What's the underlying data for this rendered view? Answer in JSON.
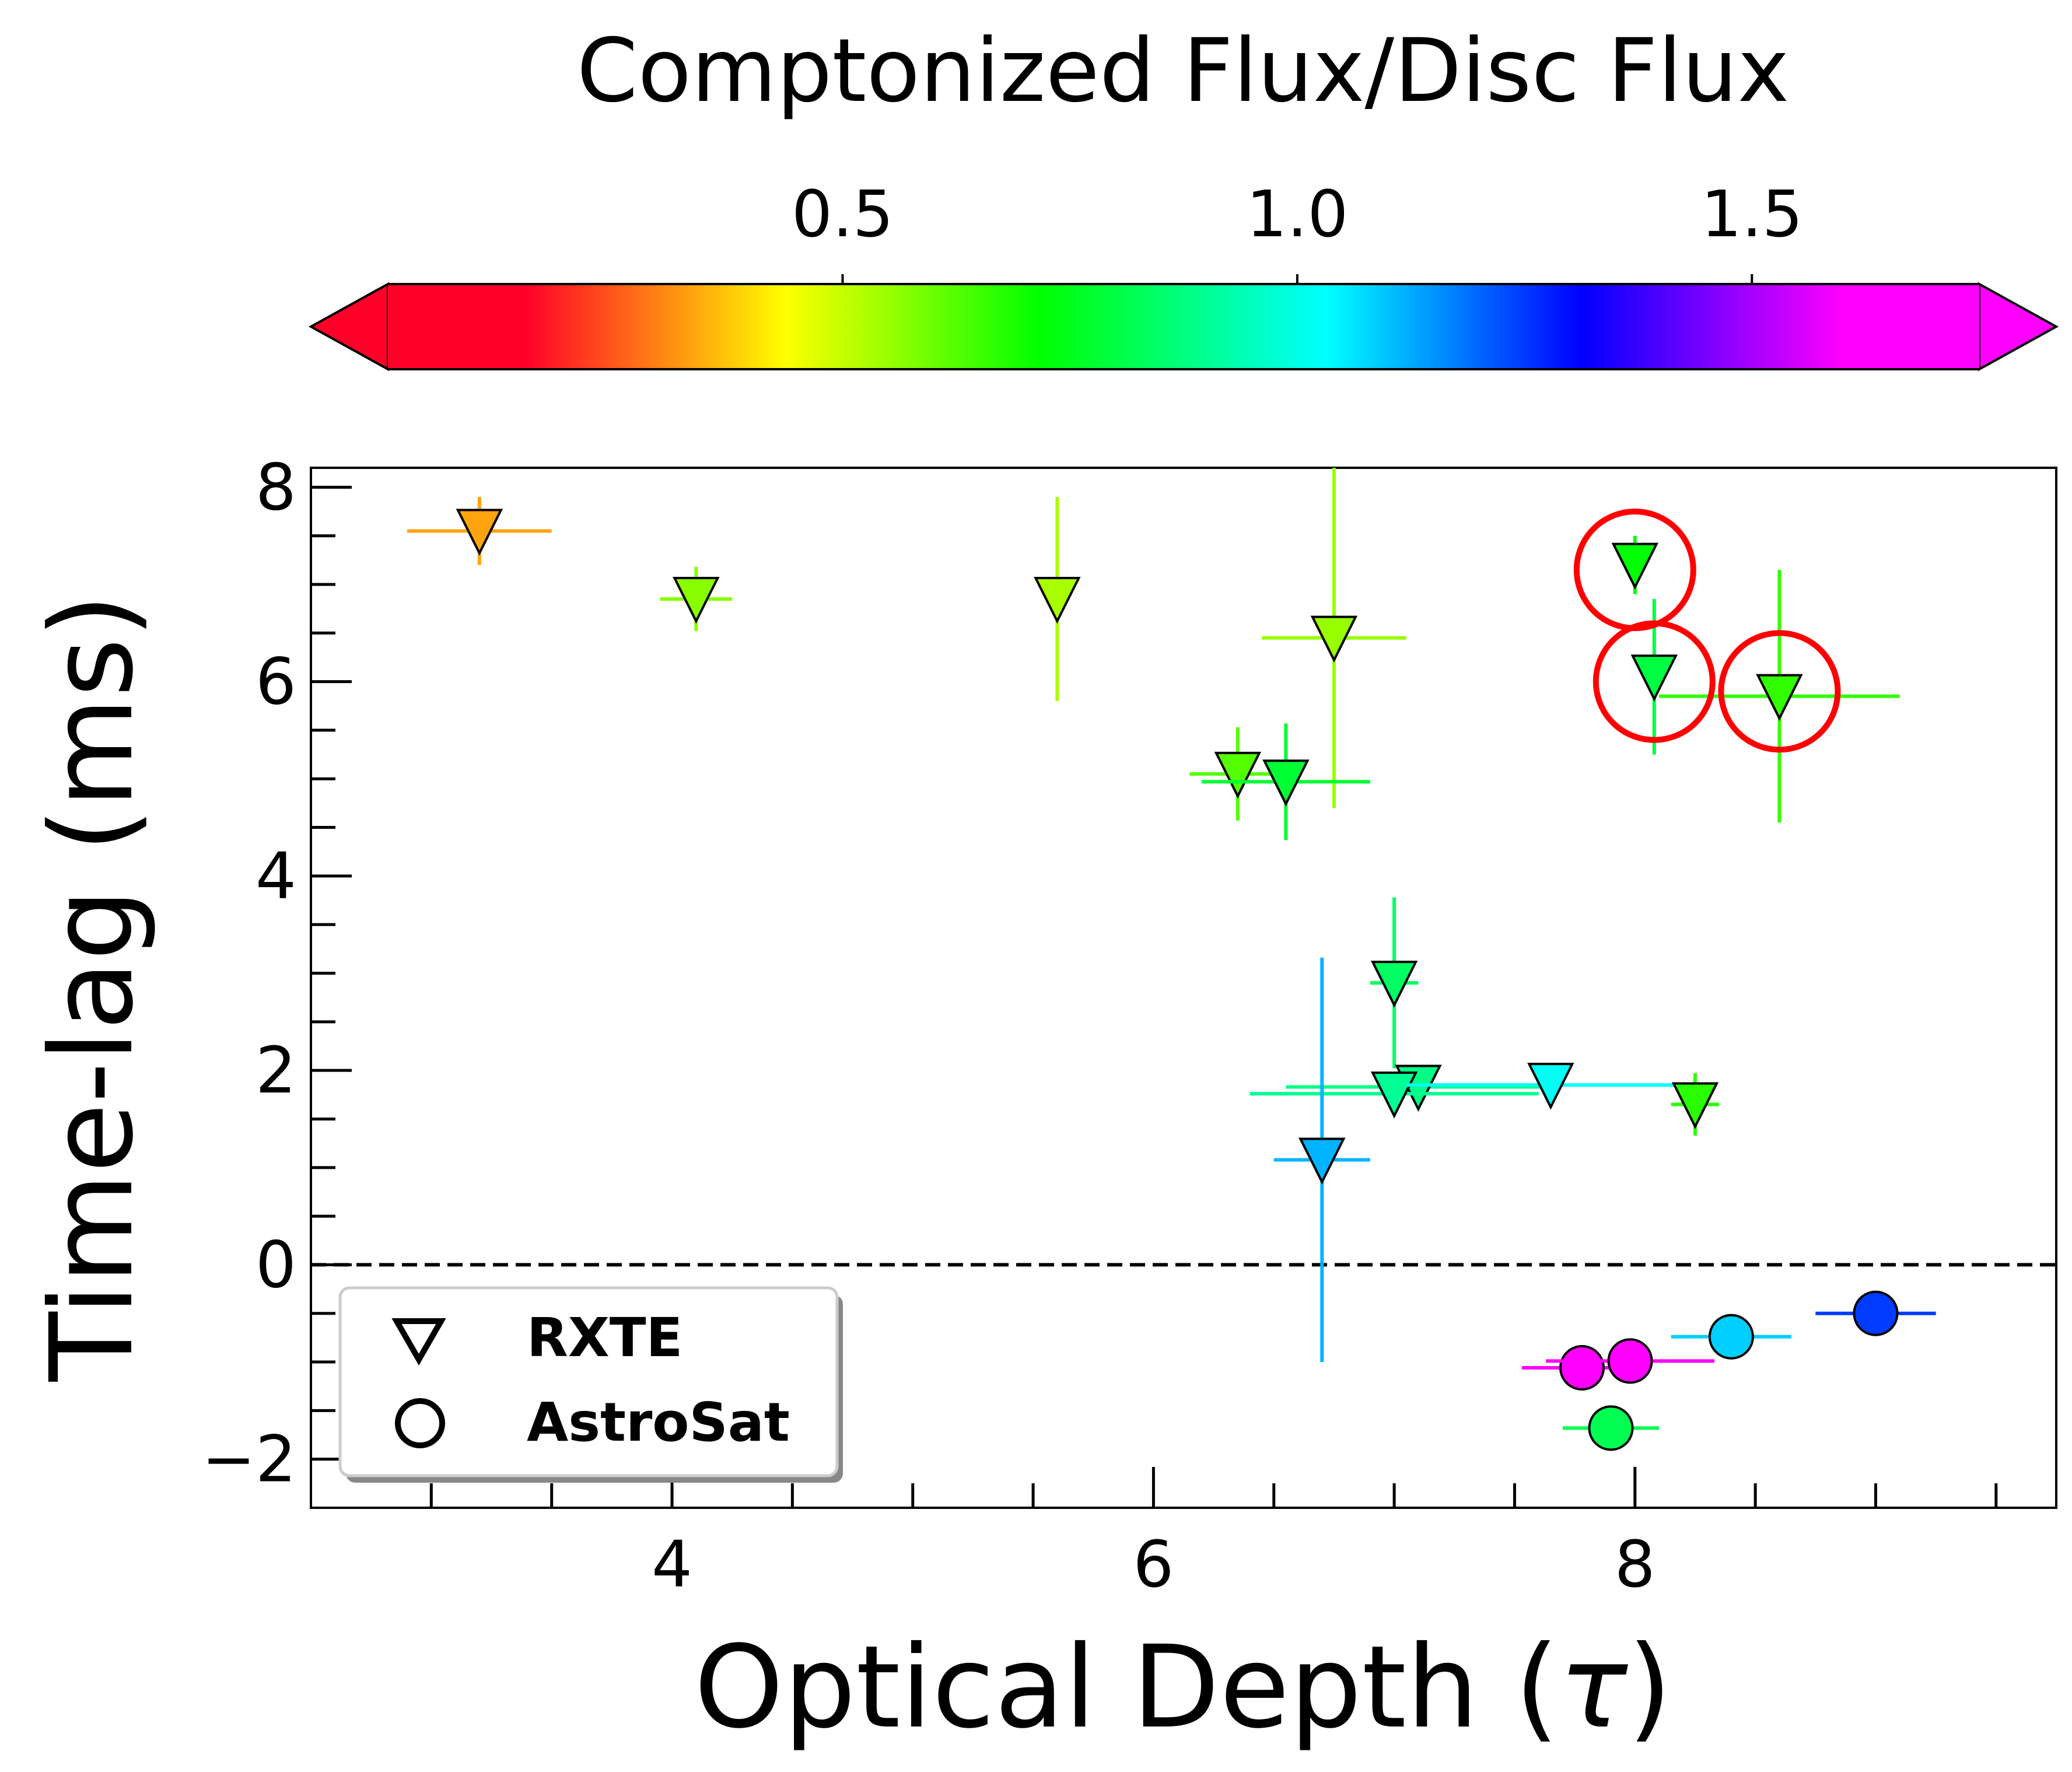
{
  "chart_data": {
    "type": "scatter",
    "xlabel": "Optical Depth (τ)",
    "ylabel": "Time-lag (ms)",
    "xlim": [
      2.5,
      9.75
    ],
    "ylim": [
      -2.5,
      8.2
    ],
    "xticks": [
      4,
      6,
      8
    ],
    "xtick_labels": [
      "4",
      "6",
      "8"
    ],
    "yticks": [
      -2,
      0,
      2,
      4,
      6,
      8
    ],
    "ytick_labels": [
      "−2",
      "0",
      "2",
      "4",
      "6",
      "8"
    ],
    "reference_line": {
      "y": 0,
      "style": "dashed"
    },
    "colorbar": {
      "title": "Comptonized Flux/Disc Flux",
      "range": [
        0.0,
        1.75
      ],
      "ticks": [
        0.5,
        1.0,
        1.5
      ],
      "tick_labels": [
        "0.5",
        "1.0",
        "1.5"
      ],
      "colormap": "gist_rainbow_r",
      "extend": "both"
    },
    "legend": {
      "position": "lower-left",
      "entries": [
        {
          "label": "RXTE",
          "marker": "triangle-down"
        },
        {
          "label": "AstroSat",
          "marker": "circle"
        }
      ]
    },
    "series": [
      {
        "name": "RXTE",
        "marker": "triangle-down",
        "points": [
          {
            "x": 3.2,
            "y": 7.55,
            "xerr": 0.3,
            "yerr": 0.35,
            "ratio": 0.18
          },
          {
            "x": 4.1,
            "y": 6.85,
            "xerr": 0.15,
            "yerr": 0.33,
            "ratio": 0.42
          },
          {
            "x": 5.6,
            "y": 6.85,
            "xerr": 0.0,
            "yerr": 1.05,
            "ratio": 0.38
          },
          {
            "x": 6.75,
            "y": 6.45,
            "xerr": 0.3,
            "yerr": 1.75,
            "ratio": 0.4
          },
          {
            "x": 6.35,
            "y": 5.05,
            "xerr": 0.2,
            "yerr": 0.48,
            "ratio": 0.48
          },
          {
            "x": 6.55,
            "y": 4.97,
            "xerr": 0.35,
            "yerr": 0.6,
            "ratio": 0.64
          },
          {
            "x": 7.0,
            "y": 2.9,
            "xerr": 0.1,
            "yerr": 0.88,
            "ratio": 0.7
          },
          {
            "x": 7.1,
            "y": 1.83,
            "xerr": 0.55,
            "yerr": 0.0,
            "ratio": 0.74
          },
          {
            "x": 7.0,
            "y": 1.76,
            "xerr": 0.6,
            "yerr": 0.0,
            "ratio": 0.76
          },
          {
            "x": 7.65,
            "y": 1.85,
            "xerr": 0.6,
            "yerr": 0.0,
            "ratio": 0.88
          },
          {
            "x": 8.25,
            "y": 1.65,
            "xerr": 0.1,
            "yerr": 0.32,
            "ratio": 0.53
          },
          {
            "x": 6.7,
            "y": 1.08,
            "xerr": 0.2,
            "yerr": 2.08,
            "ratio": 0.98
          },
          {
            "x": 8.0,
            "y": 7.2,
            "xerr": 0.0,
            "yerr": 0.3,
            "ratio": 0.58,
            "highlight": true
          },
          {
            "x": 8.08,
            "y": 6.05,
            "xerr": 0.0,
            "yerr": 0.8,
            "ratio": 0.66,
            "highlight": true
          },
          {
            "x": 8.6,
            "y": 5.85,
            "xerr": 0.5,
            "yerr": 1.3,
            "ratio": 0.52,
            "highlight": true
          }
        ]
      },
      {
        "name": "AstroSat",
        "marker": "circle",
        "points": [
          {
            "x": 7.9,
            "y": -1.68,
            "xerr": 0.2,
            "yerr": 0.0,
            "ratio": 0.68
          },
          {
            "x": 7.78,
            "y": -1.06,
            "xerr": 0.25,
            "yerr": 0.0,
            "ratio": 1.65
          },
          {
            "x": 7.98,
            "y": -0.99,
            "xerr": 0.35,
            "yerr": 0.0,
            "ratio": 1.48
          },
          {
            "x": 8.4,
            "y": -0.74,
            "xerr": 0.25,
            "yerr": 0.0,
            "ratio": 0.95
          },
          {
            "x": 9.0,
            "y": -0.5,
            "xerr": 0.25,
            "yerr": 0.0,
            "ratio": 1.12
          }
        ]
      }
    ],
    "annotations": [
      {
        "type": "circle",
        "x": 8.0,
        "y": 7.15,
        "color": "#ff0000"
      },
      {
        "type": "circle",
        "x": 8.08,
        "y": 6.0,
        "color": "#ff0000"
      },
      {
        "type": "circle",
        "x": 8.6,
        "y": 5.9,
        "color": "#ff0000"
      }
    ]
  }
}
